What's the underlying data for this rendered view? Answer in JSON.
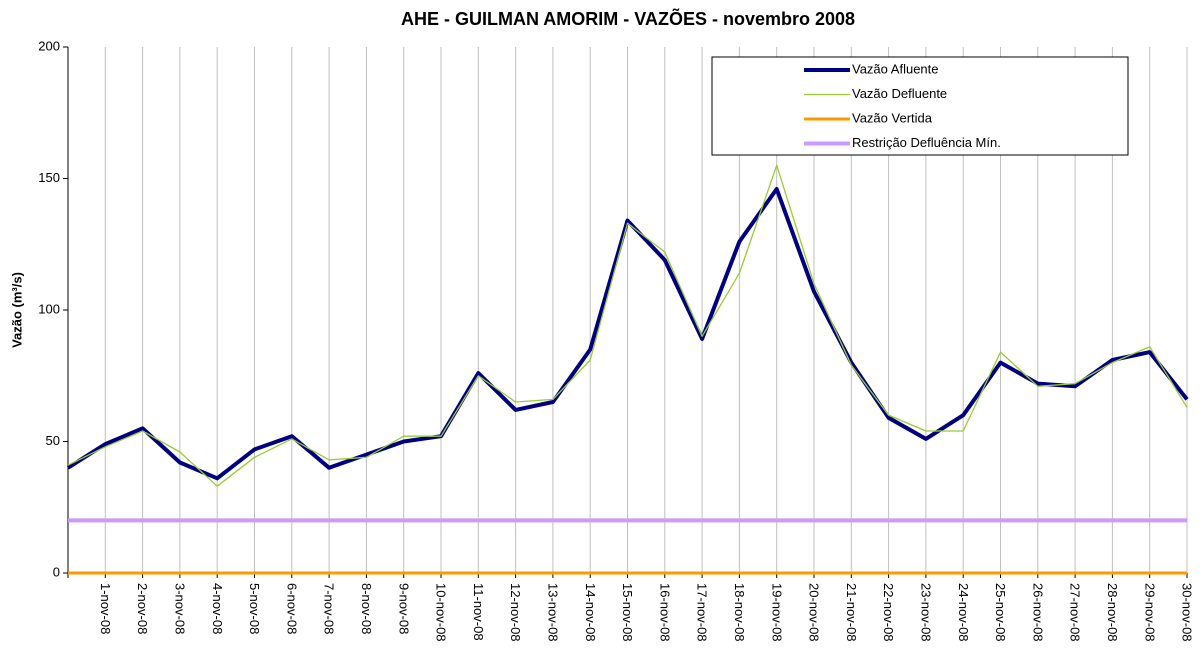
{
  "chart_data": {
    "type": "line",
    "title": "AHE - GUILMAN AMORIM - VAZÕES - novembro 2008",
    "y_label": "Vazão (m³/s)",
    "categories": [
      null,
      "1-nov-08",
      "2-nov-08",
      "3-nov-08",
      "4-nov-08",
      "5-nov-08",
      "6-nov-08",
      "7-nov-08",
      "8-nov-08",
      "9-nov-08",
      "10-nov-08",
      "11-nov-08",
      "12-nov-08",
      "13-nov-08",
      "14-nov-08",
      "15-nov-08",
      "16-nov-08",
      "17-nov-08",
      "18-nov-08",
      "19-nov-08",
      "20-nov-08",
      "21-nov-08",
      "22-nov-08",
      "23-nov-08",
      "24-nov-08",
      "25-nov-08",
      "26-nov-08",
      "27-nov-08",
      "28-nov-08",
      "29-nov-08",
      "30-nov-08"
    ],
    "series": [
      {
        "name": "Vazão Afluente",
        "color": "#000080",
        "width": 4,
        "values": [
          40,
          49,
          55,
          42,
          36,
          47,
          52,
          40,
          45,
          50,
          52,
          76,
          62,
          65,
          85,
          134,
          119,
          89,
          126,
          146,
          107,
          80,
          59,
          51,
          60,
          80,
          72,
          71,
          81,
          84,
          66
        ]
      },
      {
        "name": "Vazão Defluente",
        "color": "#99cc33",
        "width": 1.3,
        "values": [
          41,
          48,
          54,
          46,
          33,
          44,
          51,
          43,
          44,
          52,
          52,
          75,
          65,
          66,
          81,
          133,
          122,
          90,
          114,
          155,
          110,
          79,
          60,
          54,
          54,
          84,
          71,
          72,
          80,
          86,
          63
        ]
      },
      {
        "name": "Vazão Vertida",
        "color": "#ff9900",
        "width": 3,
        "values": [
          0,
          0,
          0,
          0,
          0,
          0,
          0,
          0,
          0,
          0,
          0,
          0,
          0,
          0,
          0,
          0,
          0,
          0,
          0,
          0,
          0,
          0,
          0,
          0,
          0,
          0,
          0,
          0,
          0,
          0,
          0
        ]
      },
      {
        "name": "Restrição Defluência Mín.",
        "color": "#cc99ff",
        "width": 4,
        "values": [
          20,
          20,
          20,
          20,
          20,
          20,
          20,
          20,
          20,
          20,
          20,
          20,
          20,
          20,
          20,
          20,
          20,
          20,
          20,
          20,
          20,
          20,
          20,
          20,
          20,
          20,
          20,
          20,
          20,
          20,
          20
        ]
      }
    ],
    "ylim": [
      0,
      200
    ],
    "yticks": [
      0,
      50,
      100,
      150,
      200
    ],
    "grid": "x"
  }
}
